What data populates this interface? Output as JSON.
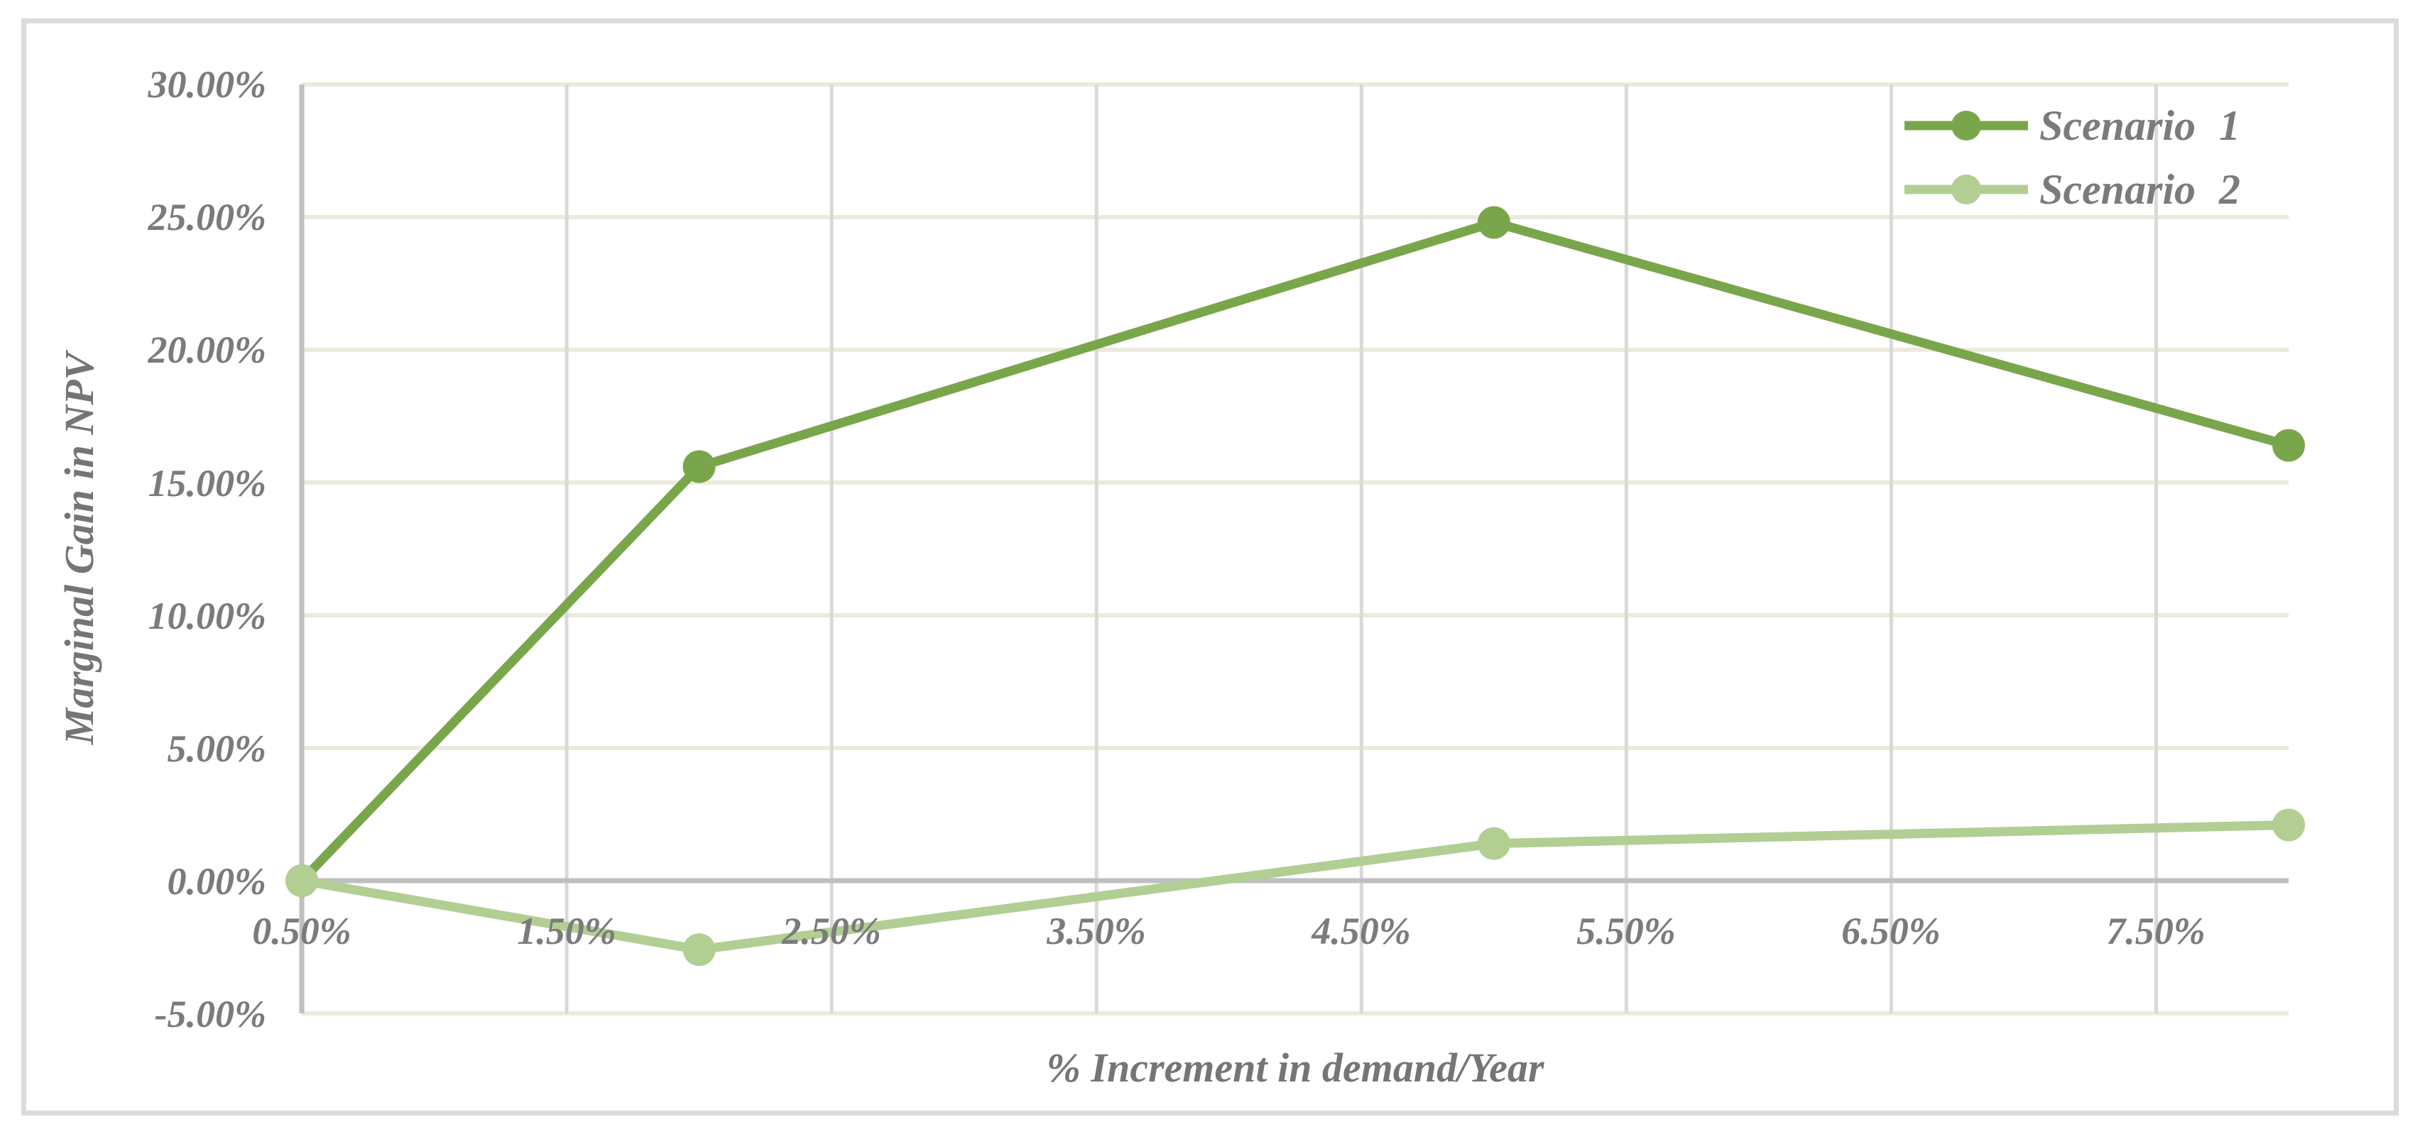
{
  "chart_data": {
    "type": "line",
    "x": [
      0.5,
      2.0,
      5.0,
      8.0
    ],
    "series": [
      {
        "name": "Scenario 1",
        "color": "#7AA64B",
        "values": [
          0.0,
          15.6,
          24.8,
          16.4
        ]
      },
      {
        "name": "Scenario 2",
        "color": "#B2CE93",
        "values": [
          0.0,
          -2.6,
          1.4,
          2.1
        ]
      }
    ],
    "title": "",
    "xlabel": "% Increment in demand/Year",
    "ylabel": "Marginal Gain in NPV",
    "xlim": [
      0.5,
      8.0
    ],
    "ylim": [
      -5,
      30
    ],
    "x_tick_values": [
      0.5,
      1.5,
      2.5,
      3.5,
      4.5,
      5.5,
      6.5,
      7.5
    ],
    "x_ticks": [
      "0.50%",
      "1.50%",
      "2.50%",
      "3.50%",
      "4.50%",
      "5.50%",
      "6.50%",
      "7.50%"
    ],
    "y_tick_values": [
      30,
      25,
      20,
      15,
      10,
      5,
      0,
      -5
    ],
    "y_ticks": [
      "30.00%",
      "25.00%",
      "20.00%",
      "15.00%",
      "10.00%",
      "5.00%",
      "0.00%",
      "-5.00%"
    ],
    "grid": true,
    "legend_position": "top-right",
    "marker": "circle"
  },
  "colors": {
    "series1": "#7AA64B",
    "series2": "#B2CE93",
    "grid_horizontal": "#EDEADD",
    "grid_vertical": "#D9D9D9",
    "axis_line": "#BFBFBF",
    "tick_text": "#7B7B7B",
    "frame_border": "#DBDBDB",
    "background": "#FFFFFF"
  }
}
